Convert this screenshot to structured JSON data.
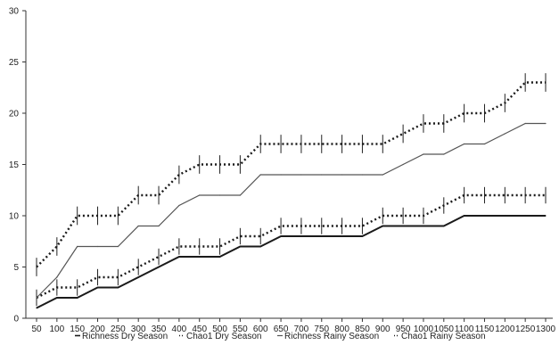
{
  "chart_data": {
    "type": "line",
    "title": "",
    "xlabel": "",
    "ylabel": "",
    "x": [
      50,
      100,
      150,
      200,
      250,
      300,
      350,
      400,
      450,
      500,
      550,
      600,
      650,
      700,
      750,
      800,
      850,
      900,
      950,
      1000,
      1050,
      1100,
      1150,
      1200,
      1250,
      1300
    ],
    "x_tick_labels": [
      "50",
      "100",
      "150",
      "200",
      "250",
      "300",
      "350",
      "400",
      "450",
      "500",
      "550",
      "600",
      "650",
      "700",
      "750",
      "800",
      "850",
      "900",
      "950",
      "1000",
      "1050",
      "1100",
      "1150",
      "1200",
      "1250",
      "1300"
    ],
    "ylim": [
      0,
      30
    ],
    "y_ticks": [
      0,
      5,
      10,
      15,
      20,
      25,
      30
    ],
    "y_tick_labels": [
      "0",
      "5",
      "10",
      "15",
      "20",
      "25",
      "30"
    ],
    "grid": false,
    "legend_position": "bottom",
    "series": [
      {
        "name": "Richness Dry Season",
        "legend_label": "Richness Dry Season",
        "style": "solid-thick",
        "color": "#1a1a1a",
        "values": [
          1,
          2,
          2,
          3,
          3,
          4,
          5,
          6,
          6,
          6,
          7,
          7,
          8,
          8,
          8,
          8,
          8,
          9,
          9,
          9,
          9,
          10,
          10,
          10,
          10,
          10
        ],
        "error": null
      },
      {
        "name": "Chao1 Dry Season",
        "legend_label": "Chao1 Dry Season",
        "style": "dotted",
        "color": "#1a1a1a",
        "values": [
          2,
          3,
          3,
          4,
          4,
          5,
          6,
          7,
          7,
          7,
          8,
          8,
          9,
          9,
          9,
          9,
          9,
          10,
          10,
          10,
          11,
          12,
          12,
          12,
          12,
          12
        ],
        "error": 0.8
      },
      {
        "name": "Richness Rainy Season",
        "legend_label": "Richness Rainy Season",
        "style": "solid-thin",
        "color": "#555555",
        "values": [
          2,
          4,
          7,
          7,
          7,
          9,
          9,
          11,
          12,
          12,
          12,
          14,
          14,
          14,
          14,
          14,
          14,
          14,
          15,
          16,
          16,
          17,
          17,
          18,
          19,
          19
        ],
        "error": null
      },
      {
        "name": "Chao1 Rainy Season",
        "legend_label": "Chao1 Rainy Season",
        "style": "dotted",
        "color": "#1a1a1a",
        "values": [
          5,
          7,
          10,
          10,
          10,
          12,
          12,
          14,
          15,
          15,
          15,
          17,
          17,
          17,
          17,
          17,
          17,
          17,
          18,
          19,
          19,
          20,
          20,
          21,
          23,
          23
        ],
        "error": 0.9
      }
    ]
  }
}
